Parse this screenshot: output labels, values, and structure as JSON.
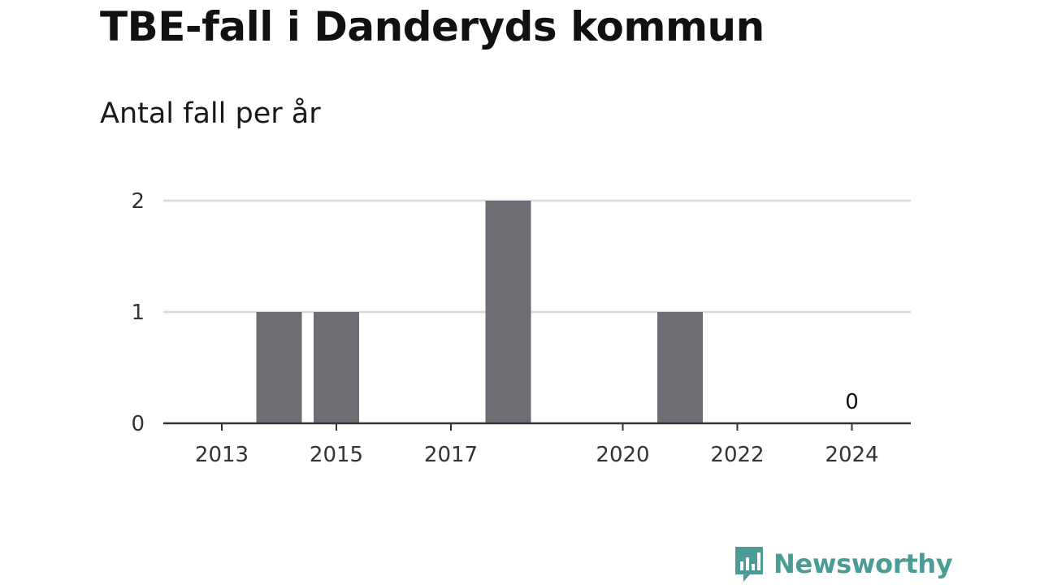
{
  "chart_data": {
    "type": "bar",
    "title": "TBE-fall i Danderyds kommun",
    "subtitle": "Antal fall per år",
    "xlabel": "",
    "ylabel": "",
    "categories": [
      2013,
      2014,
      2015,
      2016,
      2017,
      2018,
      2019,
      2020,
      2021,
      2022,
      2023,
      2024
    ],
    "values": [
      0,
      1,
      1,
      0,
      0,
      2,
      0,
      0,
      1,
      0,
      0,
      0
    ],
    "x_ticks": [
      "2013",
      "2015",
      "2017",
      "2020",
      "2022",
      "2024"
    ],
    "y_ticks": [
      "0",
      "1",
      "2"
    ],
    "ylim": [
      0,
      2
    ],
    "grid": true,
    "annotations": [
      {
        "x": 2024,
        "text": "0"
      }
    ],
    "colors": {
      "bar": "#6d6d73",
      "grid": "#d9d9d9",
      "axis": "#333333"
    }
  },
  "brand": {
    "name": "Newsworthy",
    "icon": "bar-chart-speech-bubble-icon",
    "color": "#4a9c94"
  }
}
